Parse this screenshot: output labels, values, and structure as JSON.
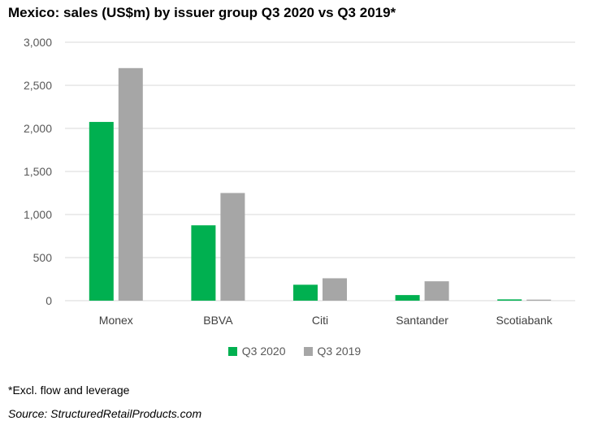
{
  "title": "Mexico: sales (US$m) by issuer group Q3 2020 vs Q3 2019*",
  "footnote": "*Excl. flow and leverage",
  "source": "Source: StructuredRetailProducts.com",
  "colors": {
    "q3_2020": "#00b050",
    "q3_2019": "#a6a6a6",
    "grid": "#d9d9d9"
  },
  "chart_data": {
    "type": "bar",
    "title": "Mexico: sales (US$m) by issuer group Q3 2020 vs Q3 2019*",
    "categories": [
      "Monex",
      "BBVA",
      "Citi",
      "Santander",
      "Scotiabank"
    ],
    "series": [
      {
        "name": "Q3 2020",
        "values": [
          2075,
          875,
          185,
          65,
          15
        ]
      },
      {
        "name": "Q3 2019",
        "values": [
          2700,
          1250,
          260,
          225,
          12
        ]
      }
    ],
    "yticks": [
      "0",
      "500",
      "1,000",
      "1,500",
      "2,000",
      "2,500",
      "3,000"
    ],
    "ylim": [
      0,
      3000
    ],
    "grid": true,
    "legend": "bottom"
  }
}
